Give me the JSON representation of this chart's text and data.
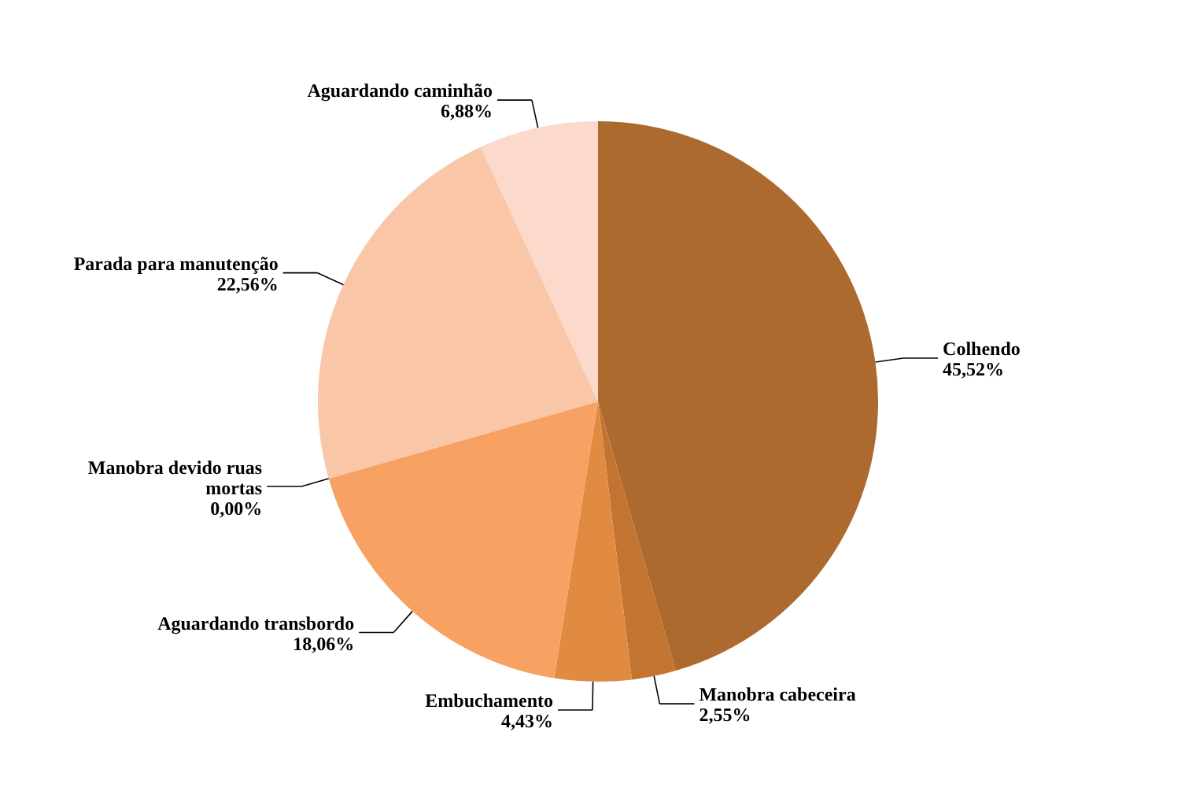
{
  "chart_data": {
    "type": "pie",
    "categories": [
      "Colhendo",
      "Manobra cabeceira",
      "Embuchamento",
      "Aguardando transbordo",
      "Manobra devido ruas mortas",
      "Parada para manutenção",
      "Aguardando caminhão"
    ],
    "values": [
      45.52,
      2.55,
      4.43,
      18.06,
      0.0,
      22.56,
      6.88
    ],
    "value_labels": [
      "45,52%",
      "2,55%",
      "4,43%",
      "18,06%",
      "0,00%",
      "22,56%",
      "6,88%"
    ],
    "colors": [
      "#ad6a2f",
      "#c27430",
      "#e08a42",
      "#f7a263",
      "#f9b487",
      "#f9c6a8",
      "#fbd9cb"
    ]
  }
}
